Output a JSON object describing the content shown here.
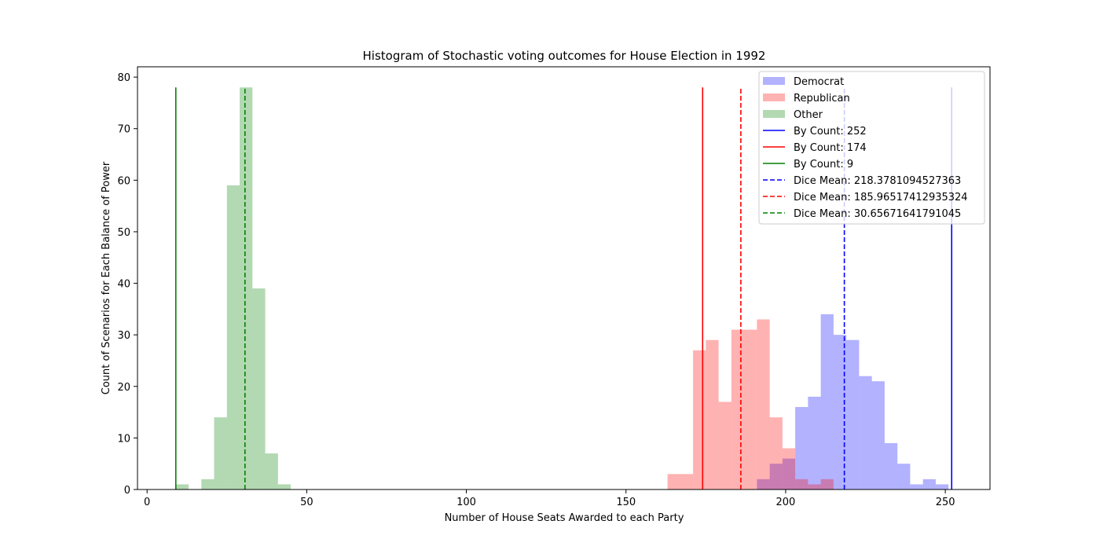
{
  "chart_data": {
    "type": "histogram",
    "title": "Histogram of Stochastic voting outcomes for House Election in 1992",
    "xlabel": "Number of House Seats Awarded to each Party",
    "ylabel": "Count of Scenarios for Each Balance of Power",
    "xlim": [
      -3,
      264
    ],
    "ylim": [
      0,
      82
    ],
    "x_ticks": [
      0,
      50,
      100,
      150,
      200,
      250
    ],
    "y_ticks": [
      0,
      10,
      20,
      30,
      40,
      50,
      60,
      70,
      80
    ],
    "series": [
      {
        "name": "Democrat",
        "color": "#0000ff",
        "alpha": 0.3,
        "bins": [
          {
            "x0": 191,
            "x1": 195,
            "count": 2
          },
          {
            "x0": 195,
            "x1": 199,
            "count": 5
          },
          {
            "x0": 199,
            "x1": 203,
            "count": 6
          },
          {
            "x0": 203,
            "x1": 207,
            "count": 16
          },
          {
            "x0": 207,
            "x1": 211,
            "count": 18
          },
          {
            "x0": 211,
            "x1": 215,
            "count": 34
          },
          {
            "x0": 215,
            "x1": 219,
            "count": 30
          },
          {
            "x0": 219,
            "x1": 223,
            "count": 29
          },
          {
            "x0": 223,
            "x1": 227,
            "count": 22
          },
          {
            "x0": 227,
            "x1": 231,
            "count": 21
          },
          {
            "x0": 231,
            "x1": 235,
            "count": 9
          },
          {
            "x0": 235,
            "x1": 239,
            "count": 5
          },
          {
            "x0": 239,
            "x1": 243,
            "count": 1
          },
          {
            "x0": 243,
            "x1": 247,
            "count": 2
          },
          {
            "x0": 247,
            "x1": 251,
            "count": 1
          }
        ]
      },
      {
        "name": "Republican",
        "color": "#ff0000",
        "alpha": 0.3,
        "bins": [
          {
            "x0": 163,
            "x1": 167,
            "count": 3
          },
          {
            "x0": 167,
            "x1": 171,
            "count": 3
          },
          {
            "x0": 171,
            "x1": 175,
            "count": 27
          },
          {
            "x0": 175,
            "x1": 179,
            "count": 29
          },
          {
            "x0": 179,
            "x1": 183,
            "count": 17
          },
          {
            "x0": 183,
            "x1": 187,
            "count": 31
          },
          {
            "x0": 187,
            "x1": 191,
            "count": 31
          },
          {
            "x0": 191,
            "x1": 195,
            "count": 33
          },
          {
            "x0": 195,
            "x1": 199,
            "count": 14
          },
          {
            "x0": 199,
            "x1": 203,
            "count": 8
          },
          {
            "x0": 203,
            "x1": 207,
            "count": 2
          },
          {
            "x0": 207,
            "x1": 211,
            "count": 1
          },
          {
            "x0": 211,
            "x1": 215,
            "count": 2
          }
        ]
      },
      {
        "name": "Other",
        "color": "#008000",
        "alpha": 0.3,
        "bins": [
          {
            "x0": 9,
            "x1": 13,
            "count": 1
          },
          {
            "x0": 13,
            "x1": 17,
            "count": 0
          },
          {
            "x0": 17,
            "x1": 21,
            "count": 2
          },
          {
            "x0": 21,
            "x1": 25,
            "count": 14
          },
          {
            "x0": 25,
            "x1": 29,
            "count": 59
          },
          {
            "x0": 29,
            "x1": 33,
            "count": 78
          },
          {
            "x0": 33,
            "x1": 37,
            "count": 39
          },
          {
            "x0": 37,
            "x1": 41,
            "count": 7
          },
          {
            "x0": 41,
            "x1": 45,
            "count": 1
          }
        ]
      }
    ],
    "vlines": [
      {
        "label": "By Count: 252",
        "x": 252,
        "color": "#0000ff",
        "style": "solid",
        "ymax": 78
      },
      {
        "label": "By Count: 174",
        "x": 174,
        "color": "#ff0000",
        "style": "solid",
        "ymax": 78
      },
      {
        "label": "By Count: 9",
        "x": 9,
        "color": "#008000",
        "style": "solid",
        "ymax": 78
      },
      {
        "label": "Dice Mean: 218.3781094527363",
        "x": 218.3781094527363,
        "color": "#0000ff",
        "style": "dashed",
        "ymax": 78
      },
      {
        "label": "Dice Mean: 185.96517412935324",
        "x": 185.96517412935324,
        "color": "#ff0000",
        "style": "dashed",
        "ymax": 78
      },
      {
        "label": "Dice Mean: 30.65671641791045",
        "x": 30.65671641791045,
        "color": "#008000",
        "style": "dashed",
        "ymax": 78
      }
    ],
    "legend_position": "top-right"
  }
}
